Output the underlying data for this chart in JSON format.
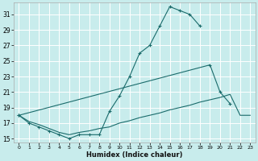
{
  "title": "",
  "xlabel": "Humidex (Indice chaleur)",
  "bg_color": "#c8ecec",
  "grid_color": "#ffffff",
  "line_color": "#1a6b6b",
  "xlim": [
    -0.5,
    23.5
  ],
  "ylim": [
    14.5,
    32.5
  ],
  "xticks": [
    0,
    1,
    2,
    3,
    4,
    5,
    6,
    7,
    8,
    9,
    10,
    11,
    12,
    13,
    14,
    15,
    16,
    17,
    18,
    19,
    20,
    21,
    22,
    23
  ],
  "yticks": [
    15,
    17,
    19,
    21,
    23,
    25,
    27,
    29,
    31
  ],
  "line1_x": [
    0,
    1,
    2,
    3,
    4,
    5,
    6,
    7,
    8,
    9,
    10,
    11,
    12,
    13,
    14,
    15,
    16,
    17,
    18
  ],
  "line1_y": [
    18.0,
    17.0,
    16.5,
    16.0,
    15.5,
    15.0,
    15.5,
    15.5,
    15.5,
    18.5,
    20.5,
    23.0,
    26.0,
    27.0,
    29.5,
    32.0,
    31.5,
    31.0,
    29.5
  ],
  "line2_x": [
    0,
    19,
    20,
    21
  ],
  "line2_y": [
    18.0,
    24.5,
    21.0,
    19.5
  ],
  "line3_x": [
    0,
    1,
    2,
    3,
    4,
    5,
    6,
    7,
    8,
    9,
    10,
    11,
    12,
    13,
    14,
    15,
    16,
    17,
    18,
    19,
    20,
    21,
    22,
    23
  ],
  "line3_y": [
    18.0,
    17.2,
    16.8,
    16.3,
    15.8,
    15.5,
    15.8,
    16.0,
    16.3,
    16.5,
    17.0,
    17.3,
    17.7,
    18.0,
    18.3,
    18.7,
    19.0,
    19.3,
    19.7,
    20.0,
    20.3,
    20.7,
    18.0,
    18.0
  ]
}
